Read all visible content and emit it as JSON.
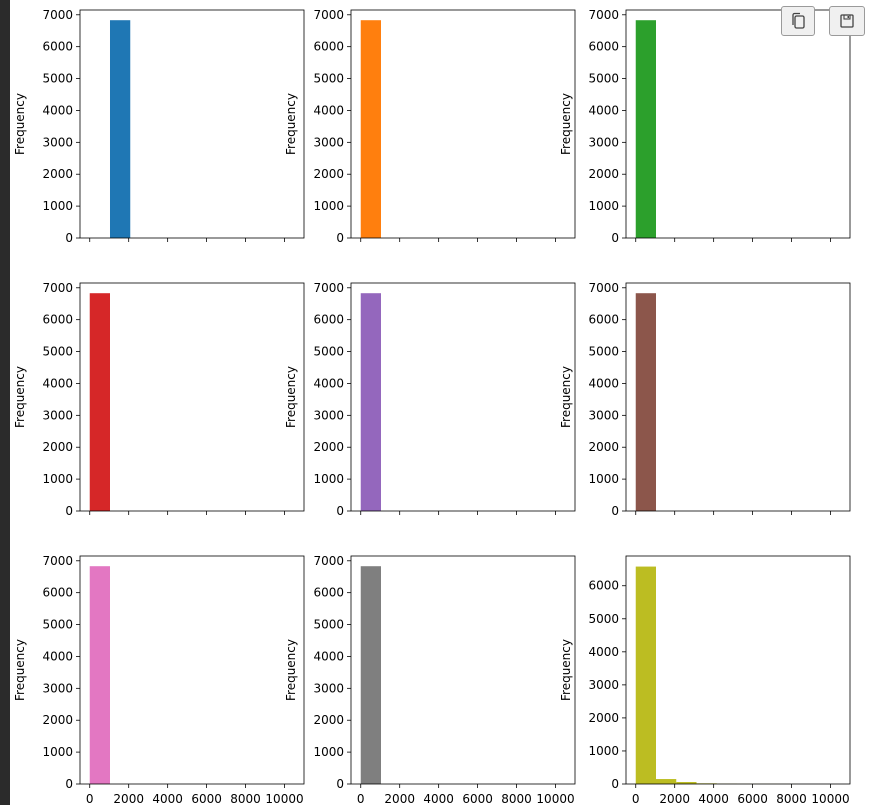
{
  "toolbar": {
    "copy_icon": "copy-icon",
    "save_icon": "save-icon"
  },
  "chart_data": [
    {
      "type": "bar",
      "name": "hist-1",
      "color": "#1f77b4",
      "ylabel": "Frequency",
      "bins": [
        {
          "x0": 1040,
          "x1": 2080,
          "count": 6830
        }
      ],
      "xlim": [
        -500,
        11000
      ],
      "ylim": [
        0,
        7150
      ],
      "yticks": [
        0,
        1000,
        2000,
        3000,
        4000,
        5000,
        6000,
        7000
      ],
      "xticks": [
        0,
        2000,
        4000,
        6000,
        8000,
        10000
      ],
      "xticklabels_visible": false
    },
    {
      "type": "bar",
      "name": "hist-2",
      "color": "#ff7f0e",
      "ylabel": "Frequency",
      "bins": [
        {
          "x0": 0,
          "x1": 1040,
          "count": 6830
        }
      ],
      "xlim": [
        -500,
        11000
      ],
      "ylim": [
        0,
        7150
      ],
      "yticks": [
        0,
        1000,
        2000,
        3000,
        4000,
        5000,
        6000,
        7000
      ],
      "xticks": [
        0,
        2000,
        4000,
        6000,
        8000,
        10000
      ],
      "xticklabels_visible": false
    },
    {
      "type": "bar",
      "name": "hist-3",
      "color": "#2ca02c",
      "ylabel": "Frequency",
      "bins": [
        {
          "x0": 0,
          "x1": 1040,
          "count": 6830
        }
      ],
      "xlim": [
        -500,
        11000
      ],
      "ylim": [
        0,
        7150
      ],
      "yticks": [
        0,
        1000,
        2000,
        3000,
        4000,
        5000,
        6000,
        7000
      ],
      "xticks": [
        0,
        2000,
        4000,
        6000,
        8000,
        10000
      ],
      "xticklabels_visible": false
    },
    {
      "type": "bar",
      "name": "hist-4",
      "color": "#d62728",
      "ylabel": "Frequency",
      "bins": [
        {
          "x0": 0,
          "x1": 1040,
          "count": 6830
        }
      ],
      "xlim": [
        -500,
        11000
      ],
      "ylim": [
        0,
        7150
      ],
      "yticks": [
        0,
        1000,
        2000,
        3000,
        4000,
        5000,
        6000,
        7000
      ],
      "xticks": [
        0,
        2000,
        4000,
        6000,
        8000,
        10000
      ],
      "xticklabels_visible": false
    },
    {
      "type": "bar",
      "name": "hist-5",
      "color": "#9467bd",
      "ylabel": "Frequency",
      "bins": [
        {
          "x0": 0,
          "x1": 1040,
          "count": 6830
        }
      ],
      "xlim": [
        -500,
        11000
      ],
      "ylim": [
        0,
        7150
      ],
      "yticks": [
        0,
        1000,
        2000,
        3000,
        4000,
        5000,
        6000,
        7000
      ],
      "xticks": [
        0,
        2000,
        4000,
        6000,
        8000,
        10000
      ],
      "xticklabels_visible": false
    },
    {
      "type": "bar",
      "name": "hist-6",
      "color": "#8c564b",
      "ylabel": "Frequency",
      "bins": [
        {
          "x0": 0,
          "x1": 1040,
          "count": 6830
        }
      ],
      "xlim": [
        -500,
        11000
      ],
      "ylim": [
        0,
        7150
      ],
      "yticks": [
        0,
        1000,
        2000,
        3000,
        4000,
        5000,
        6000,
        7000
      ],
      "xticks": [
        0,
        2000,
        4000,
        6000,
        8000,
        10000
      ],
      "xticklabels_visible": false
    },
    {
      "type": "bar",
      "name": "hist-7",
      "color": "#e377c2",
      "ylabel": "Frequency",
      "bins": [
        {
          "x0": 0,
          "x1": 1040,
          "count": 6830
        }
      ],
      "xlim": [
        -500,
        11000
      ],
      "ylim": [
        0,
        7150
      ],
      "yticks": [
        0,
        1000,
        2000,
        3000,
        4000,
        5000,
        6000,
        7000
      ],
      "xticks": [
        0,
        2000,
        4000,
        6000,
        8000,
        10000
      ],
      "xticklabels_visible": true
    },
    {
      "type": "bar",
      "name": "hist-8",
      "color": "#7f7f7f",
      "ylabel": "Frequency",
      "bins": [
        {
          "x0": 0,
          "x1": 1040,
          "count": 6830
        }
      ],
      "xlim": [
        -500,
        11000
      ],
      "ylim": [
        0,
        7150
      ],
      "yticks": [
        0,
        1000,
        2000,
        3000,
        4000,
        5000,
        6000,
        7000
      ],
      "xticks": [
        0,
        2000,
        4000,
        6000,
        8000,
        10000
      ],
      "xticklabels_visible": true
    },
    {
      "type": "bar",
      "name": "hist-9",
      "color": "#bcbd22",
      "ylabel": "Frequency",
      "bins": [
        {
          "x0": 0,
          "x1": 1040,
          "count": 6580
        },
        {
          "x0": 1040,
          "x1": 2080,
          "count": 150
        },
        {
          "x0": 2080,
          "x1": 3120,
          "count": 60
        },
        {
          "x0": 3120,
          "x1": 4160,
          "count": 20
        },
        {
          "x0": 4160,
          "x1": 5200,
          "count": 8
        },
        {
          "x0": 5200,
          "x1": 6240,
          "count": 4
        },
        {
          "x0": 6240,
          "x1": 7280,
          "count": 3
        },
        {
          "x0": 7280,
          "x1": 8320,
          "count": 2
        },
        {
          "x0": 8320,
          "x1": 9360,
          "count": 1
        },
        {
          "x0": 9360,
          "x1": 10400,
          "count": 1
        }
      ],
      "xlim": [
        -500,
        11000
      ],
      "ylim": [
        0,
        6900
      ],
      "yticks": [
        0,
        1000,
        2000,
        3000,
        4000,
        5000,
        6000
      ],
      "xticks": [
        0,
        2000,
        4000,
        6000,
        8000,
        10000
      ],
      "xticklabels_visible": true
    }
  ]
}
